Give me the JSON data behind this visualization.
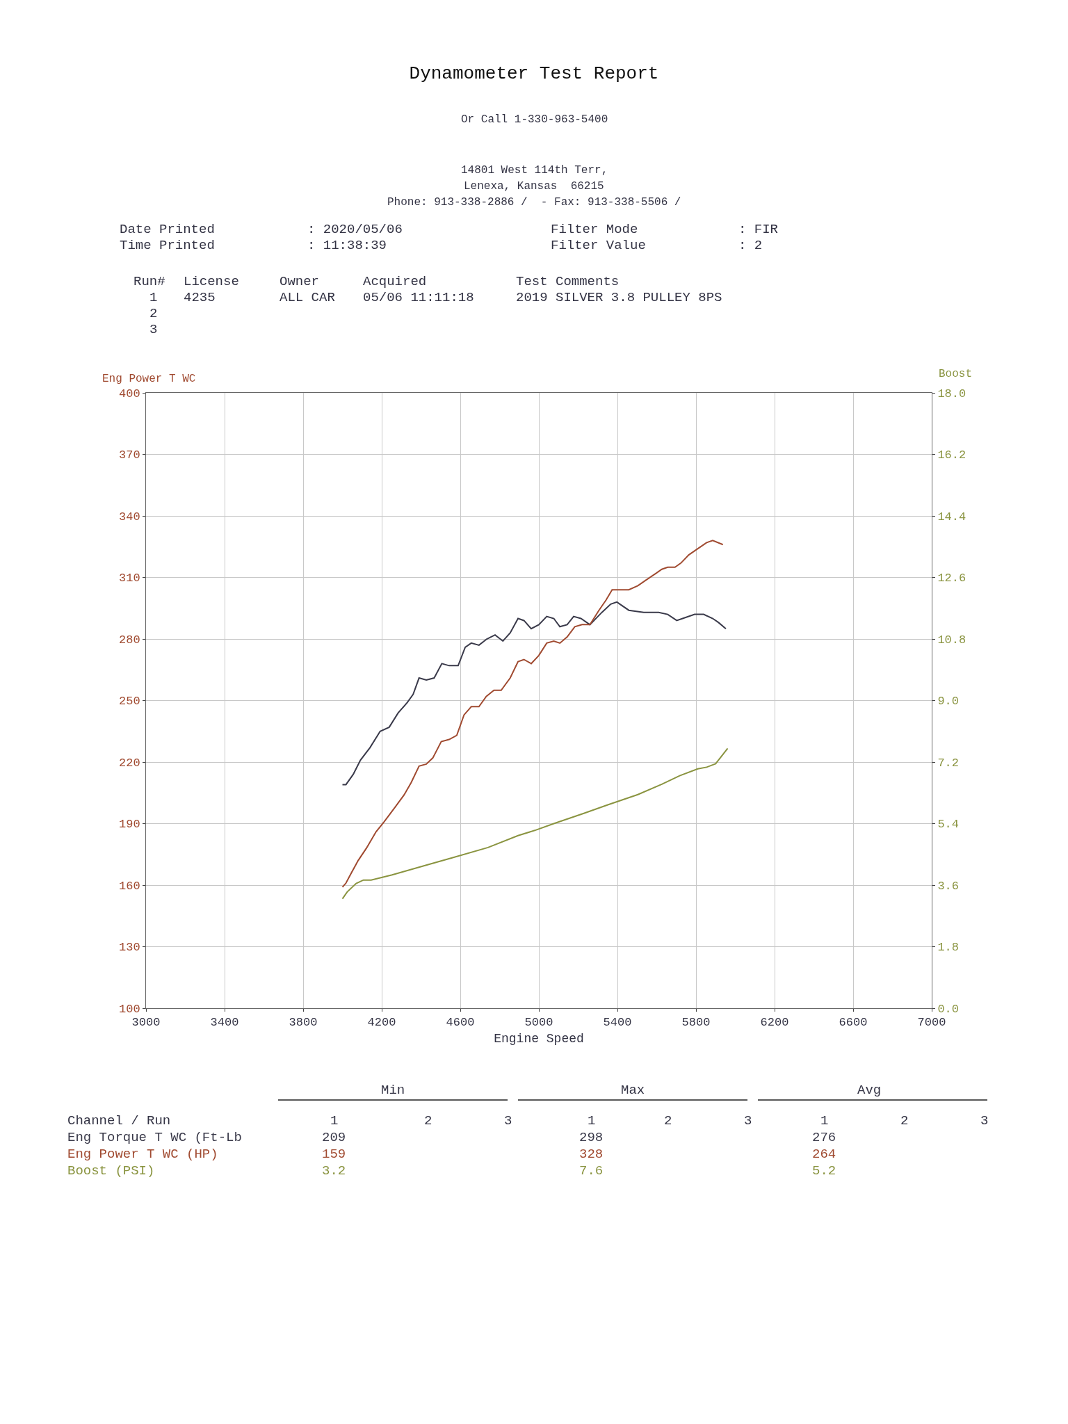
{
  "chart_data": {
    "type": "line",
    "title": "Dynamometer Test Report",
    "xlabel": "Engine Speed",
    "ylabel": "Eng Power T WC",
    "y2label": "Boost",
    "xlim": [
      3000,
      7000
    ],
    "xticks": [
      3000,
      3400,
      3800,
      4200,
      4600,
      5000,
      5400,
      5800,
      6200,
      6600,
      7000
    ],
    "ylim": [
      100,
      400
    ],
    "yticks": [
      100,
      130,
      160,
      190,
      220,
      250,
      280,
      310,
      340,
      370,
      400
    ],
    "y2lim": [
      0,
      18
    ],
    "y2ticks": [
      {
        "value": 0,
        "label": "0.0"
      },
      1.8,
      3.6,
      5.4,
      7.2,
      {
        "value": 9,
        "label": "9.0"
      },
      10.8,
      12.6,
      14.4,
      16.2,
      {
        "value": 18,
        "label": "18.0"
      }
    ],
    "grid": true,
    "legend": false,
    "marker": "none",
    "line_style": "solid",
    "series": [
      {
        "name": "Eng Torque T WC (Ft-Lb",
        "color": "#3a3a4a",
        "x": [
          4000,
          4018,
          4055,
          4092,
          4140,
          4192,
          4238,
          4284,
          4330,
          4360,
          4390,
          4427,
          4467,
          4506,
          4543,
          4589,
          4625,
          4656,
          4695,
          4735,
          4777,
          4817,
          4854,
          4894,
          4924,
          4961,
          5000,
          5040,
          5076,
          5107,
          5144,
          5177,
          5214,
          5260,
          5321,
          5366,
          5397,
          5458,
          5534,
          5610,
          5656,
          5702,
          5732,
          5793,
          5839,
          5885,
          5915,
          5952
        ],
        "values": [
          209,
          209,
          214,
          221,
          227,
          235,
          237,
          244,
          249,
          253,
          261,
          260,
          261,
          268,
          267,
          267,
          276,
          278,
          277,
          280,
          282,
          279,
          283,
          290,
          289,
          285,
          287,
          291,
          290,
          286,
          287,
          291,
          290,
          287,
          293,
          297,
          298,
          294,
          293,
          293,
          292,
          289,
          290,
          292,
          292,
          290,
          288,
          285
        ]
      },
      {
        "name": "Eng Power T WC (HP)",
        "color": "#a04a30",
        "x": [
          4000,
          4018,
          4040,
          4080,
          4122,
          4171,
          4213,
          4268,
          4314,
          4350,
          4390,
          4427,
          4460,
          4503,
          4543,
          4582,
          4619,
          4656,
          4695,
          4732,
          4771,
          4808,
          4854,
          4894,
          4924,
          4961,
          5000,
          5040,
          5076,
          5107,
          5144,
          5183,
          5220,
          5260,
          5306,
          5342,
          5373,
          5397,
          5458,
          5504,
          5550,
          5596,
          5626,
          5656,
          5693,
          5723,
          5763,
          5809,
          5854,
          5885,
          5937
        ],
        "values": [
          159,
          161,
          165,
          172,
          178,
          186,
          191,
          198,
          204,
          210,
          218,
          219,
          222,
          230,
          231,
          233,
          243,
          247,
          247,
          252,
          255,
          255,
          261,
          269,
          270,
          268,
          272,
          278,
          279,
          278,
          281,
          286,
          287,
          287,
          294,
          299,
          304,
          304,
          304,
          306,
          309,
          312,
          314,
          315,
          315,
          317,
          321,
          324,
          327,
          328,
          326
        ]
      },
      {
        "name": "Boost (PSI)",
        "color": "#8a9440",
        "axis": "y2",
        "x": [
          4000,
          4024,
          4070,
          4107,
          4146,
          4253,
          4436,
          4558,
          4741,
          4894,
          4979,
          5076,
          5229,
          5351,
          5504,
          5626,
          5717,
          5809,
          5854,
          5900,
          5961
        ],
        "values": [
          3.2,
          3.4,
          3.65,
          3.75,
          3.75,
          3.9,
          4.2,
          4.4,
          4.7,
          5.05,
          5.2,
          5.4,
          5.7,
          5.95,
          6.25,
          6.55,
          6.8,
          7.0,
          7.05,
          7.15,
          7.6
        ]
      }
    ],
    "annotations": [
      "Or Call 1-330-963-5400",
      "14801 West 114th Terr,",
      "Lenexa, Kansas  66215",
      "Phone: 913-338-2886 /  - Fax: 913-338-5506 /",
      "Date Printed",
      "Time Printed",
      ": 2020/05/06",
      ": 11:38:39",
      "Filter Mode",
      "Filter Value",
      ": FIR",
      ": 2",
      "Run#",
      "License",
      "Owner",
      "Acquired",
      "Test Comments",
      "1",
      "2",
      "3",
      "4235",
      "ALL CAR",
      "05/06 11:11:18",
      "2019 SILVER 3.8 PULLEY 8PS",
      "Min",
      "Max",
      "Avg",
      "Channel / Run",
      "1",
      "2",
      "3",
      "1",
      "2",
      "3",
      "1",
      "2",
      "3",
      "209",
      "298",
      "276",
      "159",
      "328",
      "264",
      "3.2",
      "7.6",
      "5.2"
    ]
  }
}
